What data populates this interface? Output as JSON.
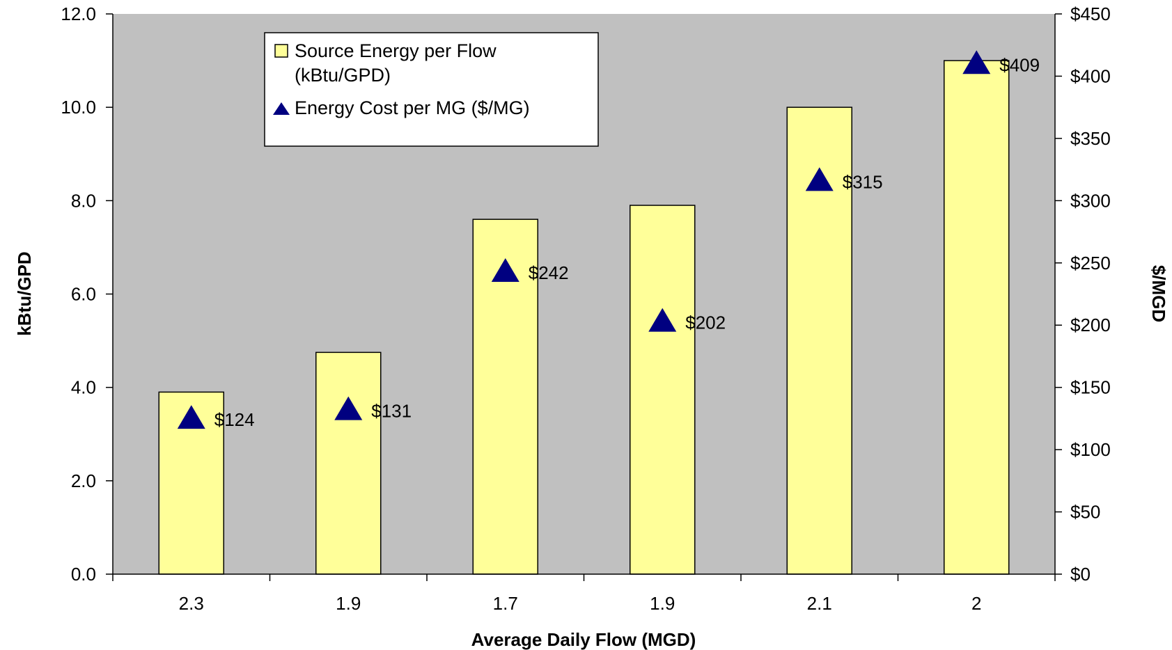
{
  "chart_data": {
    "type": "bar",
    "categories": [
      "2.3",
      "1.9",
      "1.7",
      "1.9",
      "2.1",
      "2"
    ],
    "series": [
      {
        "name": "Source Energy per Flow (kBtu/GPD)",
        "legend_lines": [
          "Source Energy per Flow",
          "(kBtu/GPD)"
        ],
        "type": "bar",
        "axis": "left",
        "values": [
          3.9,
          4.75,
          7.6,
          7.9,
          10.0,
          11.0
        ],
        "color": "#ffff99"
      },
      {
        "name": "Energy Cost per MG ($/MG)",
        "legend_lines": [
          "Energy Cost per MG ($/MG)"
        ],
        "type": "scatter",
        "marker": "triangle",
        "axis": "right",
        "values": [
          124,
          131,
          242,
          202,
          315,
          409
        ],
        "labels": [
          "$124",
          "$131",
          "$242",
          "$202",
          "$315",
          "$409"
        ],
        "color": "#000080"
      }
    ],
    "xlabel": "Average Daily Flow (MGD)",
    "ylabel": "kBtu/GPD",
    "y2label": "$/MGD",
    "ylim": [
      0,
      12
    ],
    "y_ticks": [
      "0.0",
      "2.0",
      "4.0",
      "6.0",
      "8.0",
      "10.0",
      "12.0"
    ],
    "y2lim": [
      0,
      450
    ],
    "y2_ticks": [
      "$0",
      "$50",
      "$100",
      "$150",
      "$200",
      "$250",
      "$300",
      "$350",
      "$400",
      "$450"
    ],
    "plot_background": "#c0c0c0",
    "grid": false,
    "legend_position": "top-left"
  }
}
